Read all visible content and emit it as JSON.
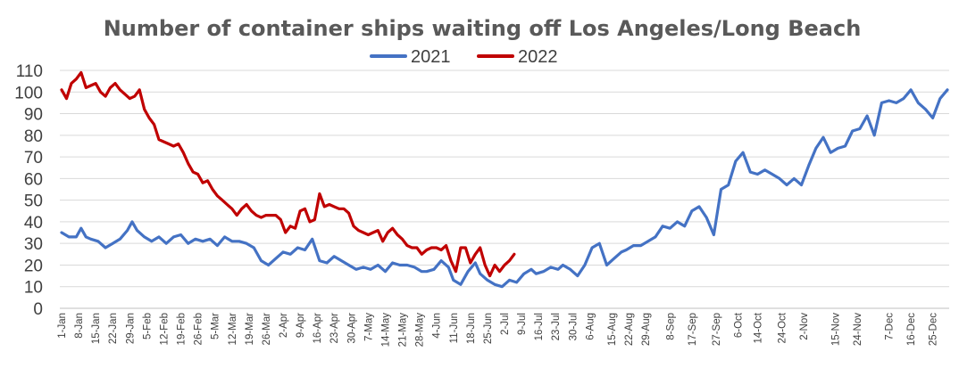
{
  "chart_data": {
    "type": "line",
    "title": "Number of container ships waiting off Los Angeles/Long Beach",
    "xlabel": "",
    "ylabel": "",
    "ylim": [
      0,
      110
    ],
    "yticks": [
      0,
      10,
      20,
      30,
      40,
      50,
      60,
      70,
      80,
      90,
      100,
      110
    ],
    "legend_position": "top-center",
    "grid": true,
    "x_unit": "day of year",
    "x_tick_labels": [
      "1-Jan",
      "8-Jan",
      "15-Jan",
      "22-Jan",
      "29-Jan",
      "5-Feb",
      "12-Feb",
      "19-Feb",
      "26-Feb",
      "5-Mar",
      "12-Mar",
      "19-Mar",
      "26-Mar",
      "2-Apr",
      "9-Apr",
      "16-Apr",
      "23-Apr",
      "30-Apr",
      "7-May",
      "14-May",
      "21-May",
      "28-May",
      "4-Jun",
      "11-Jun",
      "18-Jun",
      "25-Jun",
      "2-Jul",
      "9-Jul",
      "16-Jul",
      "23-Jul",
      "30-Jul",
      "6-Aug",
      "15-Aug",
      "22-Aug",
      "29-Aug",
      "8-Sep",
      "17-Sep",
      "27-Sep",
      "6-Oct",
      "14-Oct",
      "24-Oct",
      "2-Nov",
      "15-Nov",
      "24-Nov",
      "7-Dec",
      "16-Dec",
      "25-Dec"
    ],
    "x_tick_days": [
      0,
      7,
      14,
      21,
      28,
      35,
      42,
      49,
      56,
      63,
      70,
      77,
      84,
      91,
      98,
      105,
      112,
      119,
      126,
      133,
      140,
      147,
      154,
      161,
      168,
      175,
      182,
      189,
      196,
      203,
      210,
      217,
      226,
      233,
      240,
      250,
      259,
      269,
      278,
      286,
      296,
      305,
      318,
      327,
      340,
      349,
      358
    ],
    "series": [
      {
        "name": "2021",
        "color": "#4472c4",
        "x": [
          0,
          3,
          6,
          8,
          10,
          12,
          15,
          18,
          21,
          24,
          27,
          29,
          31,
          34,
          37,
          40,
          43,
          46,
          49,
          52,
          55,
          58,
          61,
          64,
          67,
          70,
          73,
          76,
          79,
          82,
          85,
          88,
          91,
          94,
          97,
          100,
          103,
          106,
          109,
          112,
          115,
          118,
          121,
          124,
          127,
          130,
          133,
          136,
          139,
          142,
          145,
          148,
          150,
          153,
          156,
          159,
          161,
          164,
          167,
          170,
          172,
          175,
          178,
          181,
          184,
          187,
          190,
          193,
          195,
          198,
          201,
          204,
          206,
          209,
          212,
          215,
          218,
          221,
          224,
          227,
          230,
          232,
          235,
          238,
          241,
          244,
          247,
          250,
          253,
          256,
          259,
          262,
          265,
          268,
          271,
          274,
          277,
          280,
          283,
          286,
          289,
          292,
          295,
          298,
          301,
          304,
          307,
          310,
          313,
          316,
          319,
          322,
          325,
          328,
          331,
          334,
          337,
          340,
          343,
          346,
          349,
          352,
          355,
          358,
          361,
          364
        ],
        "values": [
          35,
          33,
          33,
          37,
          33,
          32,
          31,
          28,
          30,
          32,
          36,
          40,
          36,
          33,
          31,
          33,
          30,
          33,
          34,
          30,
          32,
          31,
          32,
          29,
          33,
          31,
          31,
          30,
          28,
          22,
          20,
          23,
          26,
          25,
          28,
          27,
          32,
          22,
          21,
          24,
          22,
          20,
          18,
          19,
          18,
          20,
          17,
          21,
          20,
          20,
          19,
          17,
          17,
          18,
          22,
          19,
          13,
          11,
          17,
          21,
          16,
          13,
          11,
          10,
          13,
          12,
          16,
          18,
          16,
          17,
          19,
          18,
          20,
          18,
          15,
          20,
          28,
          30,
          20,
          23,
          26,
          27,
          29,
          29,
          31,
          33,
          38,
          37,
          40,
          38,
          45,
          47,
          42,
          34,
          55,
          57,
          68,
          72,
          63,
          62,
          64,
          62,
          60,
          57,
          60,
          57,
          66,
          74,
          79,
          72,
          74,
          75,
          82,
          83,
          89,
          80,
          95,
          96,
          95,
          97,
          101,
          95,
          92,
          88,
          97,
          101
        ]
      },
      {
        "name": "2022",
        "color": "#c00000",
        "x": [
          0,
          2,
          4,
          6,
          8,
          10,
          12,
          14,
          16,
          18,
          20,
          22,
          24,
          26,
          28,
          30,
          32,
          34,
          36,
          38,
          40,
          42,
          44,
          46,
          48,
          50,
          52,
          54,
          56,
          58,
          60,
          62,
          64,
          66,
          68,
          70,
          72,
          74,
          76,
          78,
          80,
          82,
          84,
          86,
          88,
          90,
          92,
          94,
          96,
          98,
          100,
          102,
          104,
          106,
          108,
          110,
          112,
          114,
          116,
          118,
          120,
          122,
          124,
          126,
          128,
          130,
          132,
          134,
          136,
          138,
          140,
          142,
          144,
          146,
          148,
          150,
          152,
          154,
          156,
          158,
          160,
          162,
          164,
          166,
          168,
          170,
          172,
          174,
          176,
          178,
          180,
          182,
          184,
          186
        ],
        "values": [
          101,
          97,
          104,
          106,
          109,
          102,
          103,
          104,
          100,
          98,
          102,
          104,
          101,
          99,
          97,
          98,
          101,
          92,
          88,
          85,
          78,
          77,
          76,
          75,
          76,
          72,
          67,
          63,
          62,
          58,
          59,
          55,
          52,
          50,
          48,
          46,
          43,
          46,
          48,
          45,
          43,
          42,
          43,
          43,
          43,
          41,
          35,
          38,
          37,
          45,
          46,
          40,
          41,
          53,
          47,
          48,
          47,
          46,
          46,
          44,
          38,
          36,
          35,
          34,
          35,
          36,
          31,
          35,
          37,
          34,
          32,
          29,
          28,
          28,
          25,
          27,
          28,
          28,
          27,
          29,
          22,
          17,
          28,
          28,
          21,
          25,
          28,
          20,
          15,
          20,
          17,
          20,
          22,
          25
        ]
      }
    ]
  }
}
